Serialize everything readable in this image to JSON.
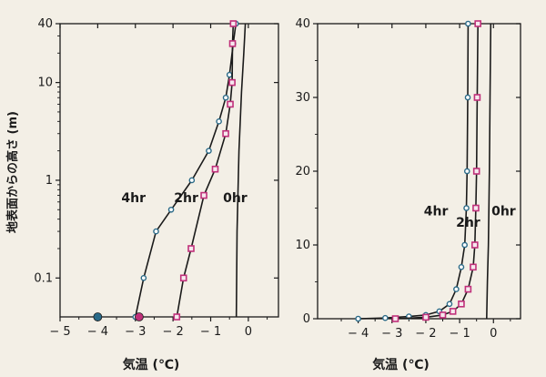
{
  "y_axis_label": "地表面からの高さ (m)",
  "chart_data": [
    {
      "type": "line",
      "yscale": "log",
      "xlabel": "気温 (℃)",
      "ylabel": "地表面からの高さ (m)",
      "xlim": [
        -5,
        0.8
      ],
      "ylim": [
        0.04,
        40
      ],
      "xticks": [
        -5,
        -4,
        -3,
        -2,
        -1,
        0
      ],
      "yticks": [
        0.1,
        1,
        10,
        40
      ],
      "grid": false,
      "series": [
        {
          "name": "4hr",
          "label_pos": {
            "x": -3.05,
            "y": 0.6
          },
          "color": "#1a1a1a",
          "marker": "#2a6a88",
          "x": [
            -3.0,
            -2.78,
            -2.45,
            -2.05,
            -1.5,
            -1.05,
            -0.78,
            -0.6,
            -0.5,
            -0.4,
            -0.33
          ],
          "y": [
            0.04,
            0.1,
            0.3,
            0.5,
            1.0,
            2.0,
            4.0,
            7.0,
            12.0,
            25.0,
            40.0
          ]
        },
        {
          "name": "2hr",
          "label_pos": {
            "x": -1.65,
            "y": 0.6
          },
          "color": "#1a1a1a",
          "marker": "#c0307a",
          "x": [
            -1.9,
            -1.72,
            -1.52,
            -1.18,
            -0.88,
            -0.6,
            -0.48,
            -0.43,
            -0.42,
            -0.4
          ],
          "y": [
            0.04,
            0.1,
            0.2,
            0.7,
            1.3,
            3.0,
            6.0,
            10.0,
            25.0,
            40.0
          ]
        },
        {
          "name": "0hr",
          "label_pos": {
            "x": -0.35,
            "y": 0.6
          },
          "color": "#1a1a1a",
          "marker": "none",
          "x": [
            -0.32,
            -0.3,
            -0.25,
            -0.18,
            -0.12,
            -0.08
          ],
          "y": [
            0.04,
            0.3,
            2.0,
            8.0,
            20.0,
            40.0
          ]
        }
      ],
      "ground_points": [
        {
          "x": -4.0,
          "color": "#2a6a88"
        },
        {
          "x": -2.9,
          "color": "#c0307a"
        }
      ]
    },
    {
      "type": "line",
      "yscale": "linear",
      "xlabel": "気温 (℃)",
      "xlim": [
        -5.2,
        0.8
      ],
      "ylim": [
        0,
        40
      ],
      "xticks": [
        -4,
        -3,
        -2,
        -1,
        0
      ],
      "yticks": [
        0,
        10,
        20,
        30,
        40
      ],
      "grid": false,
      "series": [
        {
          "name": "4hr",
          "label_pos": {
            "x": -1.7,
            "y": 14
          },
          "color": "#1a1a1a",
          "marker": "#2a6a88",
          "x": [
            -4.0,
            -3.2,
            -2.5,
            -2.0,
            -1.6,
            -1.3,
            -1.1,
            -0.95,
            -0.85,
            -0.8,
            -0.78,
            -0.76,
            -0.75
          ],
          "y": [
            0,
            0.1,
            0.3,
            0.5,
            1.0,
            2.0,
            4.0,
            7.0,
            10.0,
            15.0,
            20.0,
            30.0,
            40.0
          ]
        },
        {
          "name": "2hr",
          "label_pos": {
            "x": -0.75,
            "y": 12.5
          },
          "color": "#1a1a1a",
          "marker": "#c0307a",
          "x": [
            -2.9,
            -2.0,
            -1.5,
            -1.2,
            -0.95,
            -0.75,
            -0.6,
            -0.55,
            -0.52,
            -0.5,
            -0.48,
            -0.46
          ],
          "y": [
            0,
            0.2,
            0.5,
            1.0,
            2.0,
            4.0,
            7.0,
            10.0,
            15.0,
            20.0,
            30.0,
            40.0
          ]
        },
        {
          "name": "0hr",
          "label_pos": {
            "x": 0.3,
            "y": 14
          },
          "color": "#1a1a1a",
          "marker": "none",
          "x": [
            -0.2,
            -0.18,
            -0.15,
            -0.12,
            -0.1,
            -0.08
          ],
          "y": [
            0,
            5,
            10,
            20,
            30,
            40
          ]
        }
      ]
    }
  ]
}
